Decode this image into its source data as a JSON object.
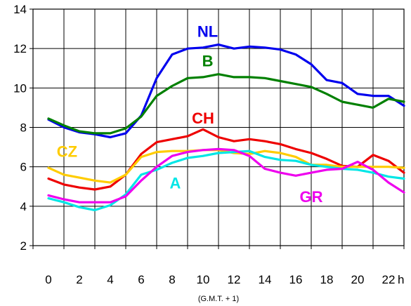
{
  "chart_data": {
    "type": "line",
    "x_unit_label": "h",
    "x_note": "(G.M.T. + 1)",
    "x": [
      0,
      1,
      2,
      3,
      4,
      5,
      6,
      7,
      8,
      9,
      10,
      11,
      12,
      13,
      14,
      15,
      16,
      17,
      18,
      19,
      20,
      21,
      22,
      23
    ],
    "x_tick_labels": [
      "0",
      "2",
      "4",
      "6",
      "8",
      "10",
      "12",
      "14",
      "16",
      "18",
      "20",
      "22"
    ],
    "y_tick_labels": [
      "2",
      "4",
      "6",
      "8",
      "10",
      "12",
      "14"
    ],
    "xlim": [
      -1,
      23
    ],
    "ylim": [
      2,
      14
    ],
    "grid": true,
    "legend": "none",
    "series": [
      {
        "name": "NL",
        "color": "#0000ee",
        "values": [
          8.4,
          8.0,
          7.75,
          7.65,
          7.5,
          7.7,
          8.6,
          10.5,
          11.7,
          12.0,
          12.05,
          12.2,
          12.0,
          12.1,
          12.05,
          11.95,
          11.7,
          11.2,
          10.4,
          10.25,
          9.7,
          9.6,
          9.6,
          9.1
        ]
      },
      {
        "name": "B",
        "color": "#008000",
        "values": [
          8.45,
          8.1,
          7.8,
          7.7,
          7.7,
          7.95,
          8.55,
          9.6,
          10.1,
          10.5,
          10.55,
          10.7,
          10.55,
          10.55,
          10.5,
          10.35,
          10.2,
          10.05,
          9.7,
          9.3,
          9.15,
          9.0,
          9.45,
          9.3
        ]
      },
      {
        "name": "CH",
        "color": "#ee0000",
        "values": [
          5.4,
          5.1,
          4.95,
          4.85,
          5.0,
          5.6,
          6.65,
          7.25,
          7.4,
          7.55,
          7.9,
          7.5,
          7.3,
          7.4,
          7.3,
          7.15,
          6.9,
          6.7,
          6.4,
          6.05,
          6.0,
          6.6,
          6.3,
          5.7
        ]
      },
      {
        "name": "CZ",
        "color": "#ffcc00",
        "values": [
          5.95,
          5.6,
          5.45,
          5.3,
          5.2,
          5.6,
          6.5,
          6.75,
          6.8,
          6.8,
          6.85,
          6.85,
          6.7,
          6.65,
          6.8,
          6.7,
          6.5,
          6.1,
          6.1,
          6.0,
          6.0,
          6.0,
          6.0,
          5.95
        ]
      },
      {
        "name": "A",
        "color": "#00e6e6",
        "values": [
          4.4,
          4.2,
          3.95,
          3.8,
          4.05,
          4.6,
          5.6,
          5.85,
          6.2,
          6.45,
          6.55,
          6.7,
          6.75,
          6.8,
          6.5,
          6.35,
          6.3,
          6.1,
          6.0,
          5.9,
          5.85,
          5.7,
          5.5,
          5.4
        ]
      },
      {
        "name": "GR",
        "color": "#ee00ee",
        "values": [
          4.55,
          4.35,
          4.2,
          4.2,
          4.2,
          4.5,
          5.3,
          6.0,
          6.55,
          6.75,
          6.85,
          6.9,
          6.85,
          6.55,
          5.9,
          5.7,
          5.55,
          5.7,
          5.85,
          5.9,
          6.25,
          5.85,
          5.2,
          4.7
        ]
      }
    ]
  }
}
